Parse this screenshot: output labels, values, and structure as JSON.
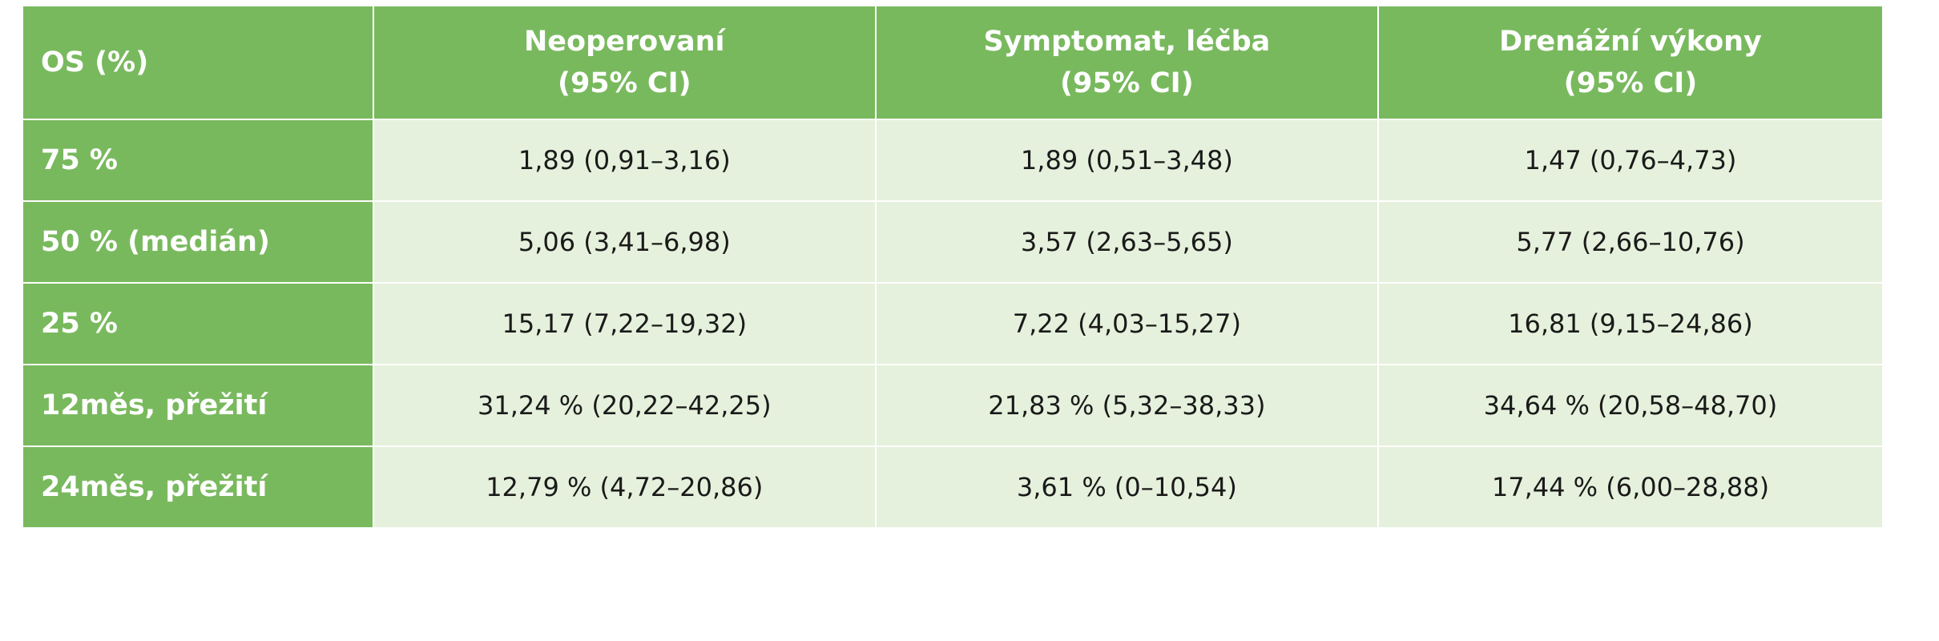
{
  "table": {
    "header": {
      "label": "OS (%)",
      "columns": [
        {
          "line1": "Neoperovaní",
          "line2": "(95% CI)"
        },
        {
          "line1": "Symptomat, léčba",
          "line2": "(95% CI)"
        },
        {
          "line1": "Drenážní výkony",
          "line2": "(95% CI)"
        }
      ]
    },
    "rows": [
      {
        "label": "75 %",
        "values": [
          "1,89 (0,91–3,16)",
          "1,89 (0,51–3,48)",
          "1,47 (0,76–4,73)"
        ]
      },
      {
        "label": "50 % (medián)",
        "values": [
          "5,06 (3,41–6,98)",
          "3,57 (2,63–5,65)",
          "5,77 (2,66–10,76)"
        ]
      },
      {
        "label": "25 %",
        "values": [
          "15,17 (7,22–19,32)",
          "7,22 (4,03–15,27)",
          "16,81 (9,15–24,86)"
        ]
      },
      {
        "label": "12měs, přežití",
        "values": [
          "31,24 % (20,22–42,25)",
          "21,83 % (5,32–38,33)",
          "34,64 % (20,58–48,70)"
        ]
      },
      {
        "label": "24měs, přežití",
        "values": [
          "12,79 % (4,72–20,86)",
          "3,61 % (0–10,54)",
          "17,44 % (6,00–28,88)"
        ]
      }
    ],
    "colors": {
      "header_green": "#79b95e",
      "cell_light_green": "#e5f1dc",
      "text_white": "#ffffff",
      "text_dark": "#1a1a1a"
    }
  }
}
